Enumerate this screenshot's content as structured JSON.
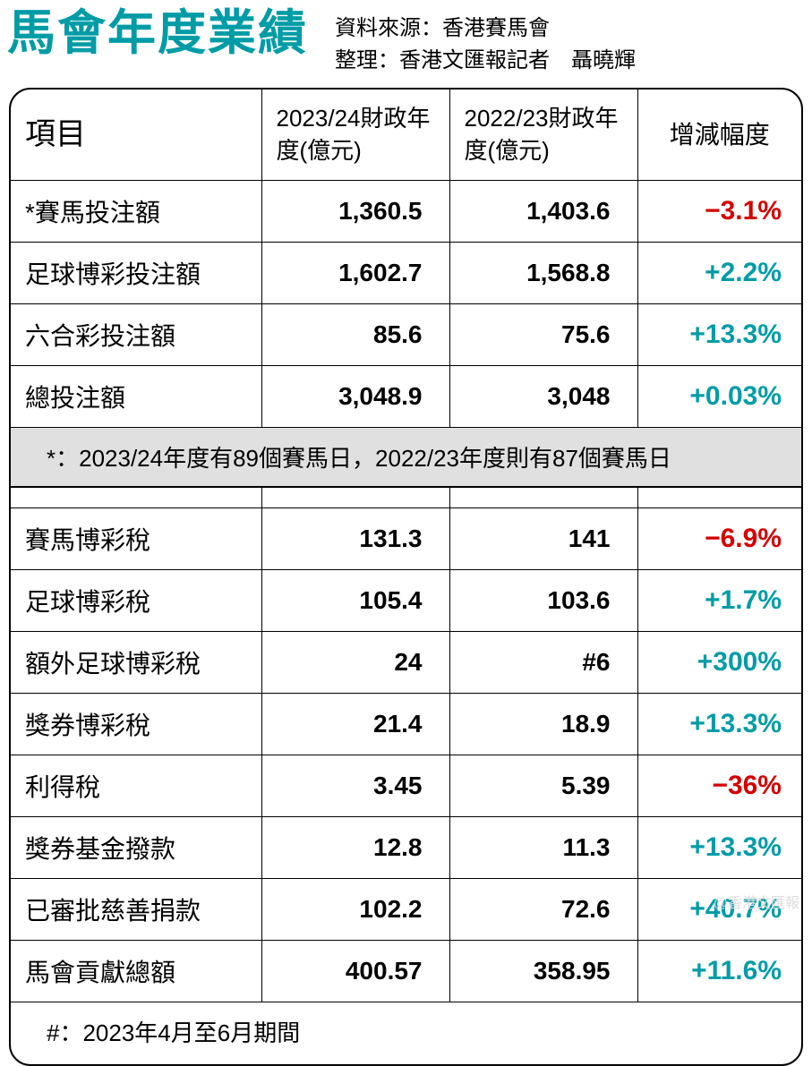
{
  "header": {
    "title": "馬會年度業績",
    "source_line": "資料來源：香港賽馬會",
    "compile_line": "整理：香港文匯報記者　聶曉輝"
  },
  "table": {
    "columns": {
      "col1": "項目",
      "col2": "2023/24財政年度(億元)",
      "col3": "2022/23財政年度(億元)",
      "col4": "增減幅度"
    },
    "colors": {
      "title": "#009ca6",
      "positive": "#009ca6",
      "negative": "#d40000",
      "note_bg": "#e0e0e0",
      "border": "#000000"
    },
    "section1": [
      {
        "label": "*賽馬投注額",
        "fy24": "1,360.5",
        "fy23": "1,403.6",
        "change": "−3.1%",
        "dir": "neg"
      },
      {
        "label": "足球博彩投注額",
        "fy24": "1,602.7",
        "fy23": "1,568.8",
        "change": "+2.2%",
        "dir": "pos"
      },
      {
        "label": "六合彩投注額",
        "fy24": "85.6",
        "fy23": "75.6",
        "change": "+13.3%",
        "dir": "pos"
      },
      {
        "label": "總投注額",
        "fy24": "3,048.9",
        "fy23": "3,048",
        "change": "+0.03%",
        "dir": "pos"
      }
    ],
    "note1": "*：2023/24年度有89個賽馬日，2022/23年度則有87個賽馬日",
    "section2": [
      {
        "label": "賽馬博彩稅",
        "fy24": "131.3",
        "fy23": "141",
        "change": "−6.9%",
        "dir": "neg"
      },
      {
        "label": "足球博彩稅",
        "fy24": "105.4",
        "fy23": "103.6",
        "change": "+1.7%",
        "dir": "pos"
      },
      {
        "label": "額外足球博彩稅",
        "fy24": "24",
        "fy23": "#6",
        "change": "+300%",
        "dir": "pos"
      },
      {
        "label": "獎券博彩稅",
        "fy24": "21.4",
        "fy23": "18.9",
        "change": "+13.3%",
        "dir": "pos"
      },
      {
        "label": "利得稅",
        "fy24": "3.45",
        "fy23": "5.39",
        "change": "−36%",
        "dir": "neg"
      },
      {
        "label": "獎券基金撥款",
        "fy24": "12.8",
        "fy23": "11.3",
        "change": "+13.3%",
        "dir": "pos"
      },
      {
        "label": "已審批慈善捐款",
        "fy24": "102.2",
        "fy23": "72.6",
        "change": "+40.7%",
        "dir": "pos"
      },
      {
        "label": "馬會貢獻總額",
        "fy24": "400.57",
        "fy23": "358.95",
        "change": "+11.6%",
        "dir": "pos"
      }
    ],
    "note2": "#：2023年4月至6月期間"
  },
  "watermark": "@香港文匯報"
}
